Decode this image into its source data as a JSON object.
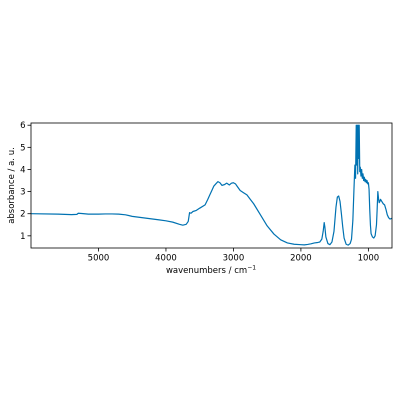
{
  "chart_data": {
    "type": "line",
    "title": "",
    "xlabel": "wavenumbers / cm",
    "xlabel_sup": "−1",
    "ylabel": "absorbance / a. u.",
    "xlim": [
      6000,
      650
    ],
    "ylim": [
      0.45,
      6.1
    ],
    "x_inverted": true,
    "grid": false,
    "legend": "none",
    "line_color": "#0072b2",
    "xticks": [
      5000,
      4000,
      3000,
      2000,
      1000
    ],
    "yticks": [
      1,
      2,
      3,
      4,
      5,
      6
    ],
    "series": [
      {
        "points": [
          [
            6000,
            2.0
          ],
          [
            5600,
            1.98
          ],
          [
            5400,
            1.96
          ],
          [
            5320,
            1.97
          ],
          [
            5300,
            2.02
          ],
          [
            5250,
            2.01
          ],
          [
            5150,
            1.98
          ],
          [
            5000,
            1.98
          ],
          [
            4900,
            1.99
          ],
          [
            4800,
            1.99
          ],
          [
            4700,
            1.98
          ],
          [
            4600,
            1.95
          ],
          [
            4500,
            1.88
          ],
          [
            4300,
            1.8
          ],
          [
            4100,
            1.72
          ],
          [
            4000,
            1.68
          ],
          [
            3900,
            1.62
          ],
          [
            3800,
            1.52
          ],
          [
            3750,
            1.48
          ],
          [
            3700,
            1.52
          ],
          [
            3670,
            1.65
          ],
          [
            3650,
            2.05
          ],
          [
            3630,
            2.02
          ],
          [
            3600,
            2.1
          ],
          [
            3550,
            2.15
          ],
          [
            3500,
            2.25
          ],
          [
            3420,
            2.4
          ],
          [
            3380,
            2.65
          ],
          [
            3350,
            2.85
          ],
          [
            3320,
            3.05
          ],
          [
            3290,
            3.25
          ],
          [
            3260,
            3.35
          ],
          [
            3230,
            3.45
          ],
          [
            3200,
            3.4
          ],
          [
            3170,
            3.28
          ],
          [
            3130,
            3.32
          ],
          [
            3100,
            3.38
          ],
          [
            3060,
            3.3
          ],
          [
            3030,
            3.38
          ],
          [
            3000,
            3.4
          ],
          [
            2970,
            3.35
          ],
          [
            2940,
            3.22
          ],
          [
            2900,
            3.05
          ],
          [
            2850,
            2.95
          ],
          [
            2800,
            2.85
          ],
          [
            2750,
            2.65
          ],
          [
            2700,
            2.45
          ],
          [
            2600,
            1.95
          ],
          [
            2500,
            1.45
          ],
          [
            2400,
            1.08
          ],
          [
            2300,
            0.82
          ],
          [
            2200,
            0.68
          ],
          [
            2100,
            0.62
          ],
          [
            2000,
            0.6
          ],
          [
            1950,
            0.59
          ],
          [
            1900,
            0.61
          ],
          [
            1850,
            0.64
          ],
          [
            1800,
            0.68
          ],
          [
            1750,
            0.7
          ],
          [
            1720,
            0.72
          ],
          [
            1690,
            0.85
          ],
          [
            1670,
            1.2
          ],
          [
            1655,
            1.6
          ],
          [
            1645,
            1.4
          ],
          [
            1630,
            0.95
          ],
          [
            1600,
            0.65
          ],
          [
            1570,
            0.6
          ],
          [
            1540,
            0.72
          ],
          [
            1510,
            1.2
          ],
          [
            1480,
            2.3
          ],
          [
            1460,
            2.75
          ],
          [
            1440,
            2.8
          ],
          [
            1420,
            2.55
          ],
          [
            1400,
            2.0
          ],
          [
            1380,
            1.4
          ],
          [
            1360,
            0.9
          ],
          [
            1330,
            0.62
          ],
          [
            1300,
            0.58
          ],
          [
            1270,
            0.65
          ],
          [
            1250,
            0.85
          ],
          [
            1230,
            1.7
          ],
          [
            1215,
            3.0
          ],
          [
            1200,
            4.2
          ],
          [
            1190,
            3.6
          ],
          [
            1180,
            6.0
          ],
          [
            1172,
            4.2
          ],
          [
            1165,
            6.0
          ],
          [
            1158,
            3.8
          ],
          [
            1150,
            6.0
          ],
          [
            1143,
            4.5
          ],
          [
            1136,
            6.0
          ],
          [
            1128,
            3.9
          ],
          [
            1120,
            4.1
          ],
          [
            1110,
            3.7
          ],
          [
            1100,
            4.0
          ],
          [
            1090,
            3.6
          ],
          [
            1080,
            3.8
          ],
          [
            1070,
            3.5
          ],
          [
            1060,
            3.65
          ],
          [
            1050,
            3.45
          ],
          [
            1040,
            3.55
          ],
          [
            1030,
            3.4
          ],
          [
            1020,
            3.5
          ],
          [
            1010,
            3.35
          ],
          [
            1000,
            3.4
          ],
          [
            990,
            3.1
          ],
          [
            980,
            2.2
          ],
          [
            970,
            1.5
          ],
          [
            960,
            1.1
          ],
          [
            940,
            0.95
          ],
          [
            920,
            0.9
          ],
          [
            900,
            1.0
          ],
          [
            880,
            1.5
          ],
          [
            870,
            2.2
          ],
          [
            860,
            3.0
          ],
          [
            850,
            2.7
          ],
          [
            840,
            2.5
          ],
          [
            830,
            2.55
          ],
          [
            820,
            2.65
          ],
          [
            800,
            2.55
          ],
          [
            780,
            2.45
          ],
          [
            760,
            2.4
          ],
          [
            740,
            2.2
          ],
          [
            720,
            1.95
          ],
          [
            700,
            1.82
          ],
          [
            680,
            1.76
          ],
          [
            660,
            1.78
          ],
          [
            650,
            1.8
          ]
        ]
      }
    ]
  }
}
